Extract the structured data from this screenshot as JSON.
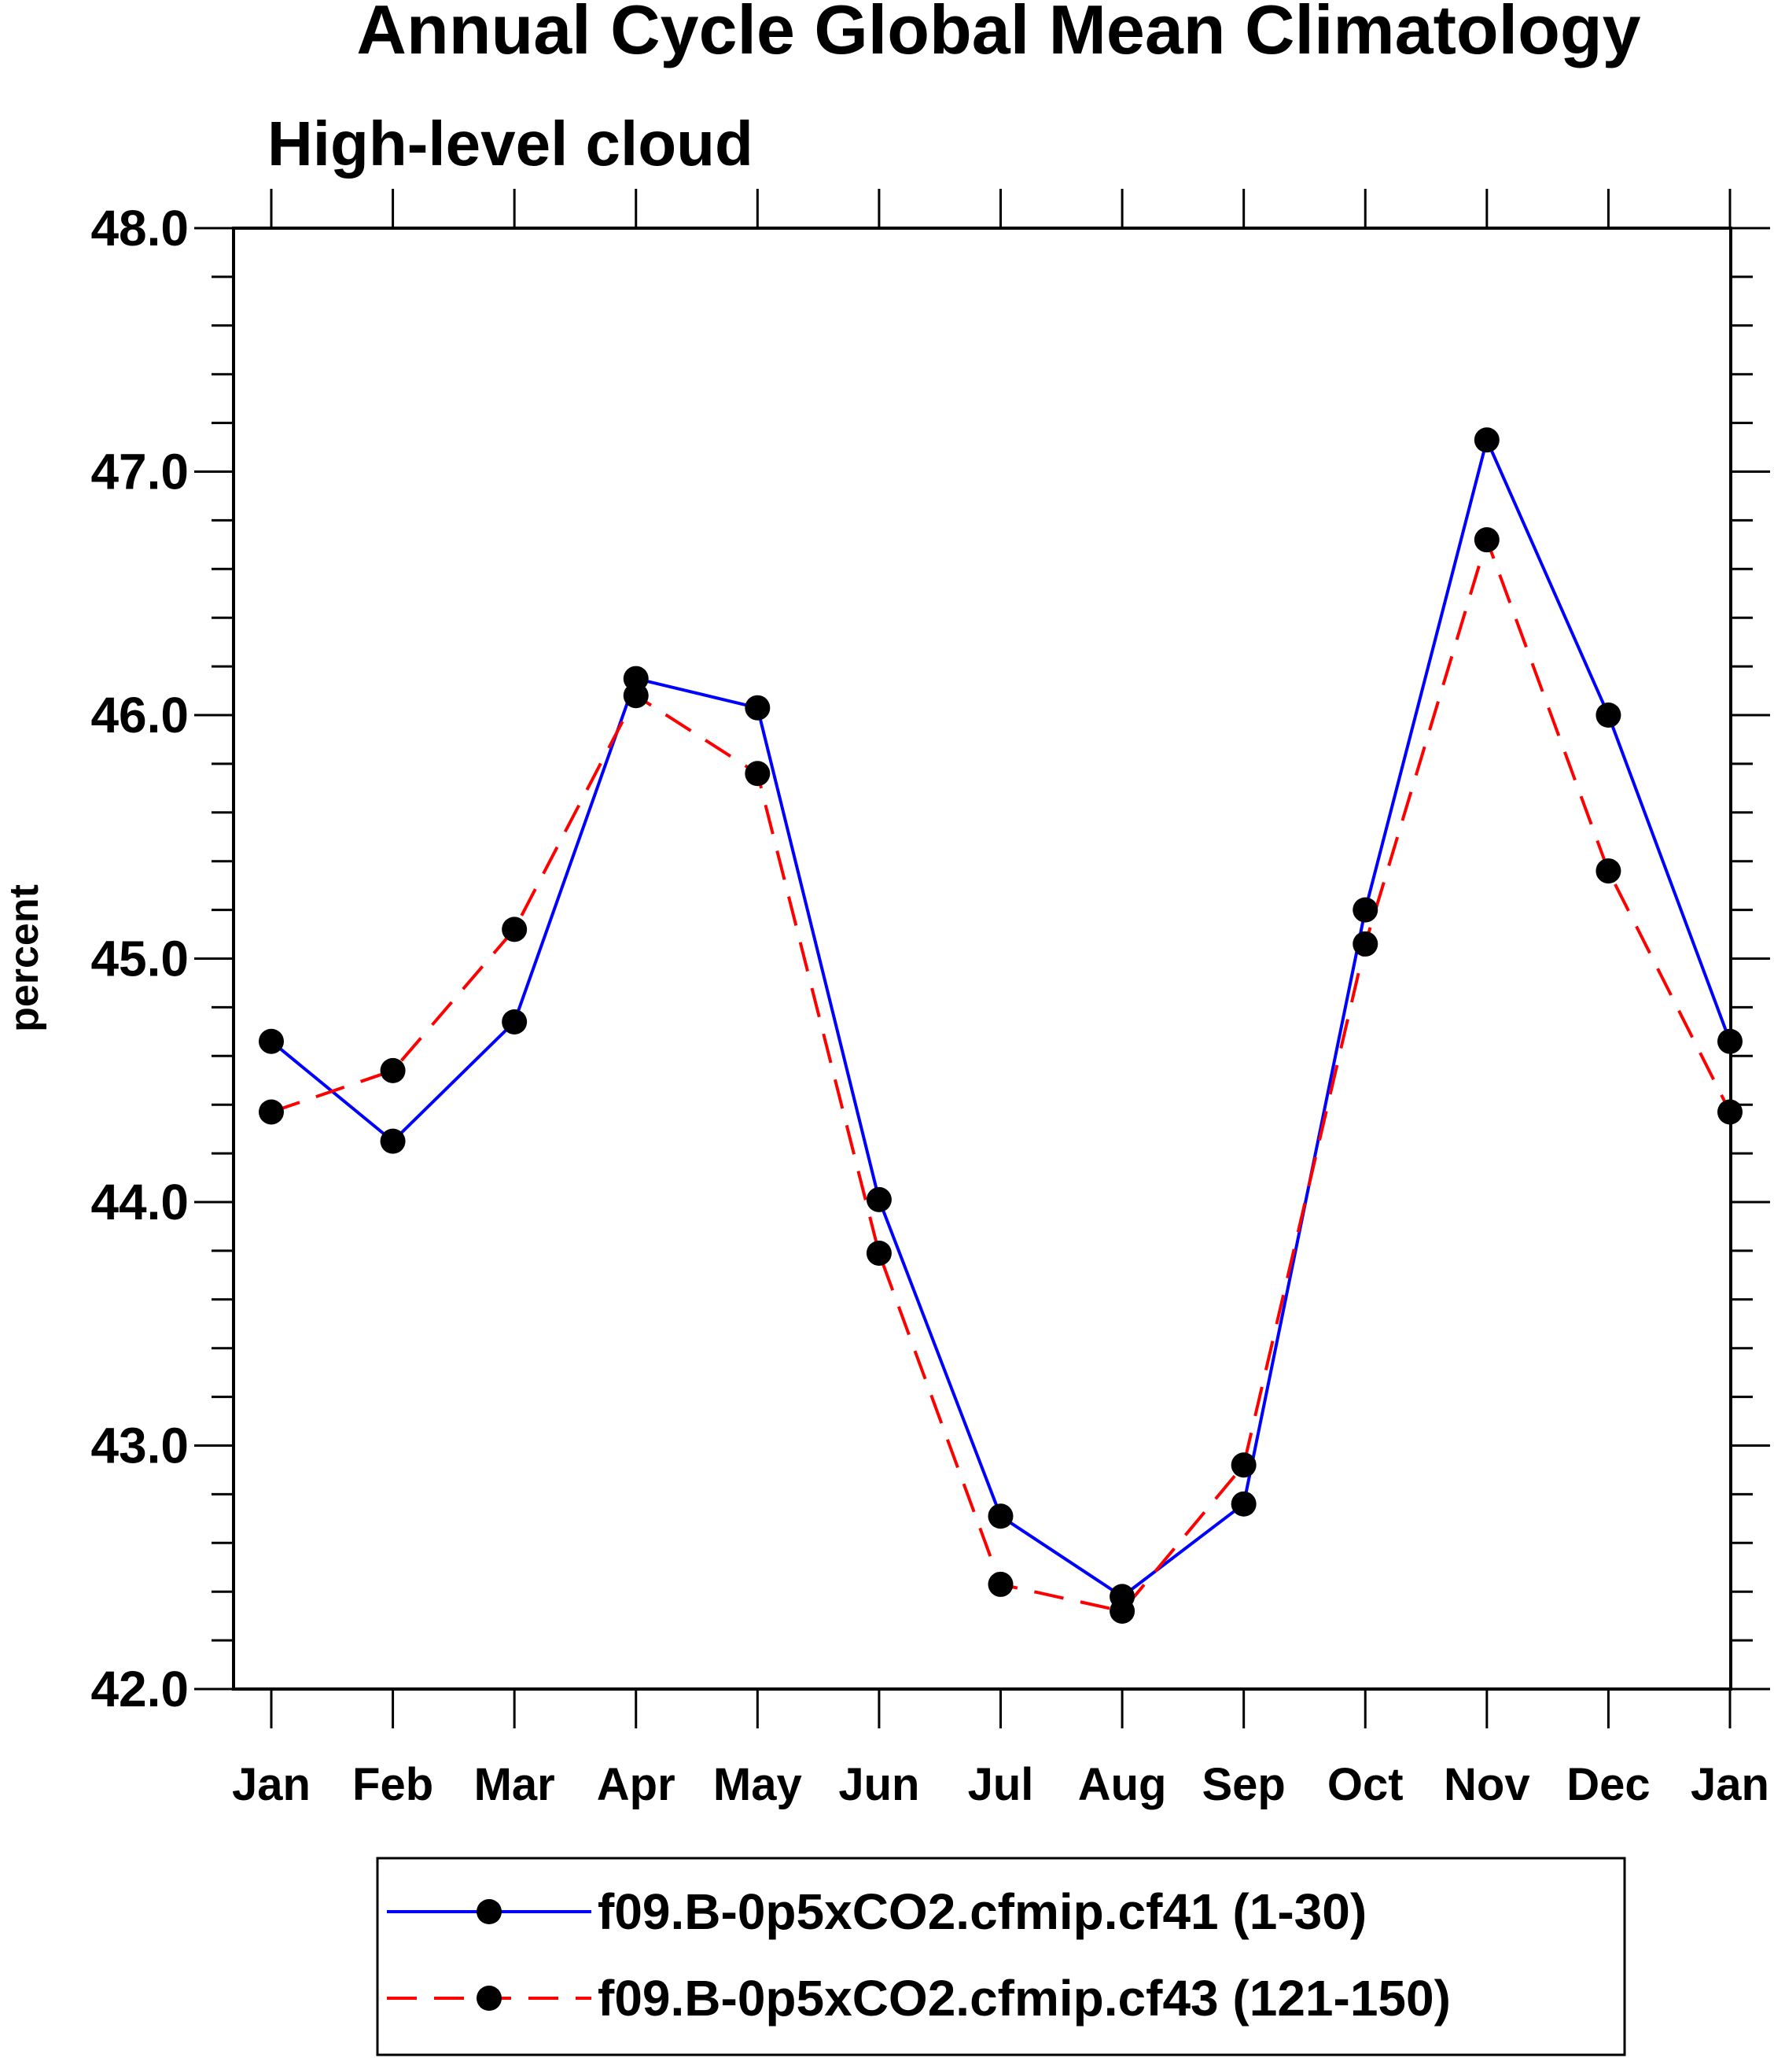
{
  "chart_data": {
    "type": "line",
    "title": "Annual Cycle Global Mean Climatology",
    "subtitle": "High-level cloud",
    "ylabel": "percent",
    "xlabel": "",
    "categories": [
      "Jan",
      "Feb",
      "Mar",
      "Apr",
      "May",
      "Jun",
      "Jul",
      "Aug",
      "Sep",
      "Oct",
      "Nov",
      "Dec",
      "Jan"
    ],
    "ylim": [
      42.0,
      48.0
    ],
    "yticks": [
      "42.0",
      "43.0",
      "44.0",
      "45.0",
      "46.0",
      "47.0",
      "48.0"
    ],
    "grid": false,
    "legend_position": "bottom",
    "series": [
      {
        "name": "f09.B-0p5xCO2.cfmip.cf41 (1-30)",
        "color": "#0000ff",
        "dash": "solid",
        "values": [
          44.66,
          44.25,
          44.74,
          46.15,
          46.03,
          44.01,
          42.71,
          42.38,
          42.76,
          45.2,
          47.13,
          46.0,
          44.66
        ]
      },
      {
        "name": "f09.B-0p5xCO2.cfmip.cf43 (121-150)",
        "color": "#ff0000",
        "dash": "dashed",
        "values": [
          44.37,
          44.54,
          45.12,
          46.08,
          45.76,
          43.79,
          42.43,
          42.32,
          42.92,
          45.06,
          46.72,
          45.36,
          44.37
        ]
      }
    ]
  }
}
